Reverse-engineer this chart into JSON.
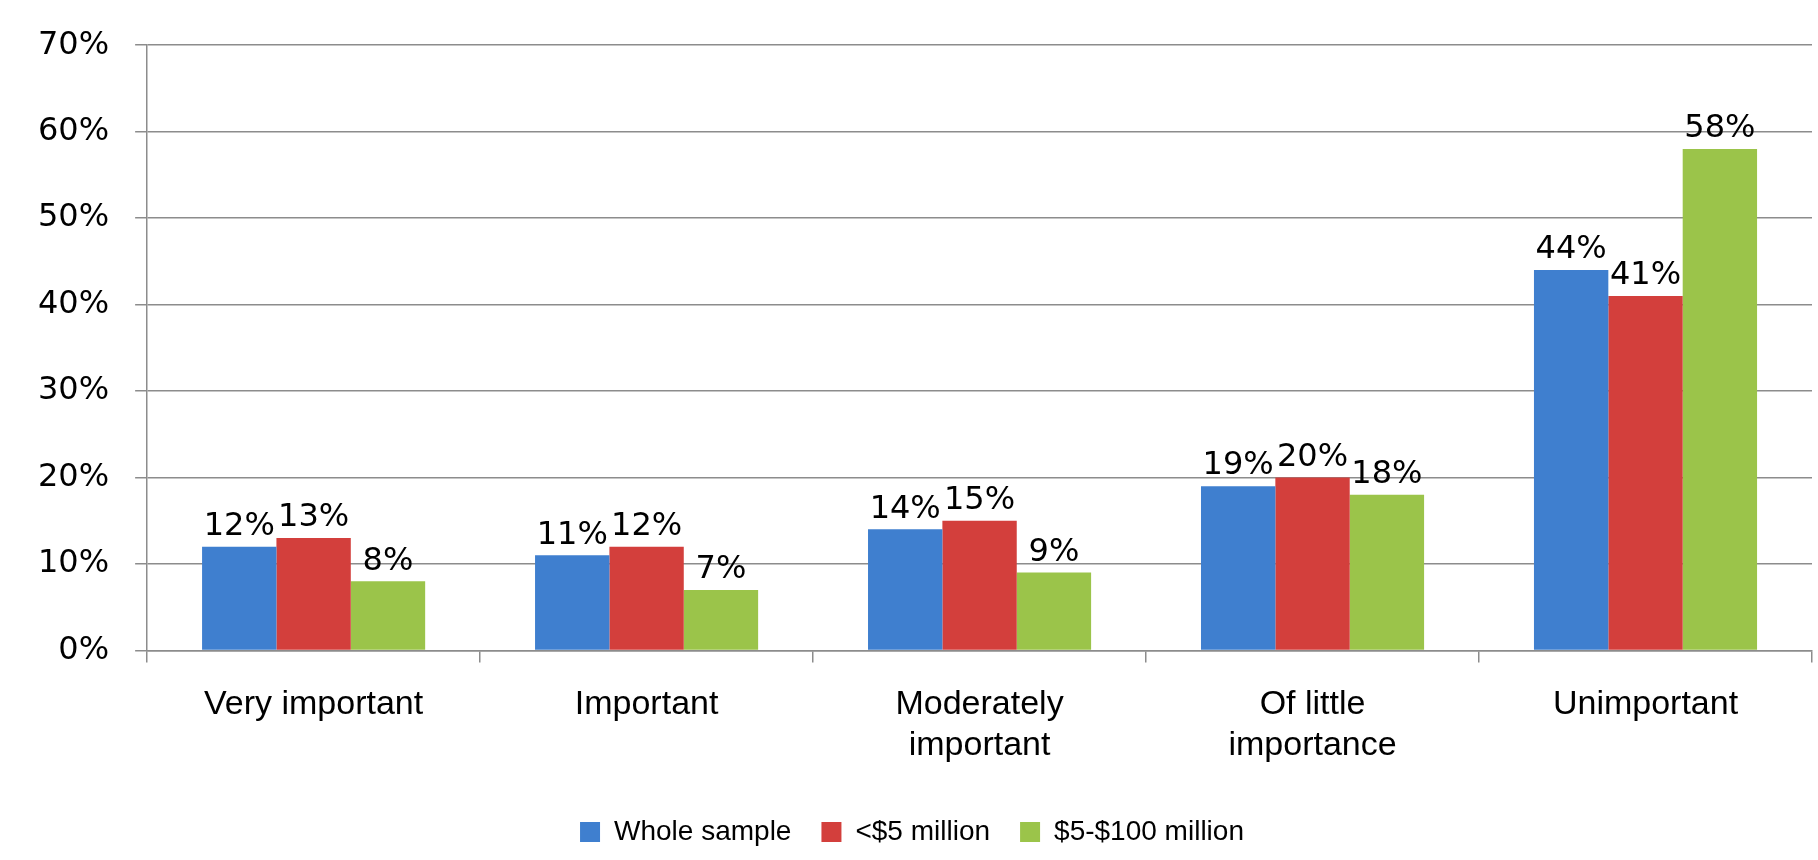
{
  "chart_data": {
    "type": "bar",
    "categories": [
      "Very important",
      "Important",
      "Moderately important",
      "Of little importance",
      "Unimportant"
    ],
    "series": [
      {
        "name": "Whole sample",
        "color": "#3f7fcf",
        "values": [
          12,
          11,
          14,
          19,
          44
        ],
        "value_labels": [
          "12%",
          "11%",
          "14%",
          "19%",
          "44%"
        ]
      },
      {
        "name": "<$5 million",
        "color": "#d33f3c",
        "values": [
          13,
          12,
          15,
          20,
          41
        ],
        "value_labels": [
          "13%",
          "12%",
          "15%",
          "20%",
          "41%"
        ]
      },
      {
        "name": "$5-$100 million",
        "color": "#9bc44a",
        "values": [
          8,
          7,
          9,
          18,
          58
        ],
        "value_labels": [
          "8%",
          "7%",
          "9%",
          "18%",
          "58%"
        ]
      }
    ],
    "ylim": [
      0,
      70
    ],
    "yticks": [
      {
        "value": 0,
        "label": "0%"
      },
      {
        "value": 10,
        "label": "10%"
      },
      {
        "value": 20,
        "label": "20%"
      },
      {
        "value": 30,
        "label": "30%"
      },
      {
        "value": 40,
        "label": "40%"
      },
      {
        "value": 50,
        "label": "50%"
      },
      {
        "value": 60,
        "label": "60%"
      },
      {
        "value": 70,
        "label": "70%"
      }
    ],
    "grid": "y",
    "legend": "bottom"
  }
}
